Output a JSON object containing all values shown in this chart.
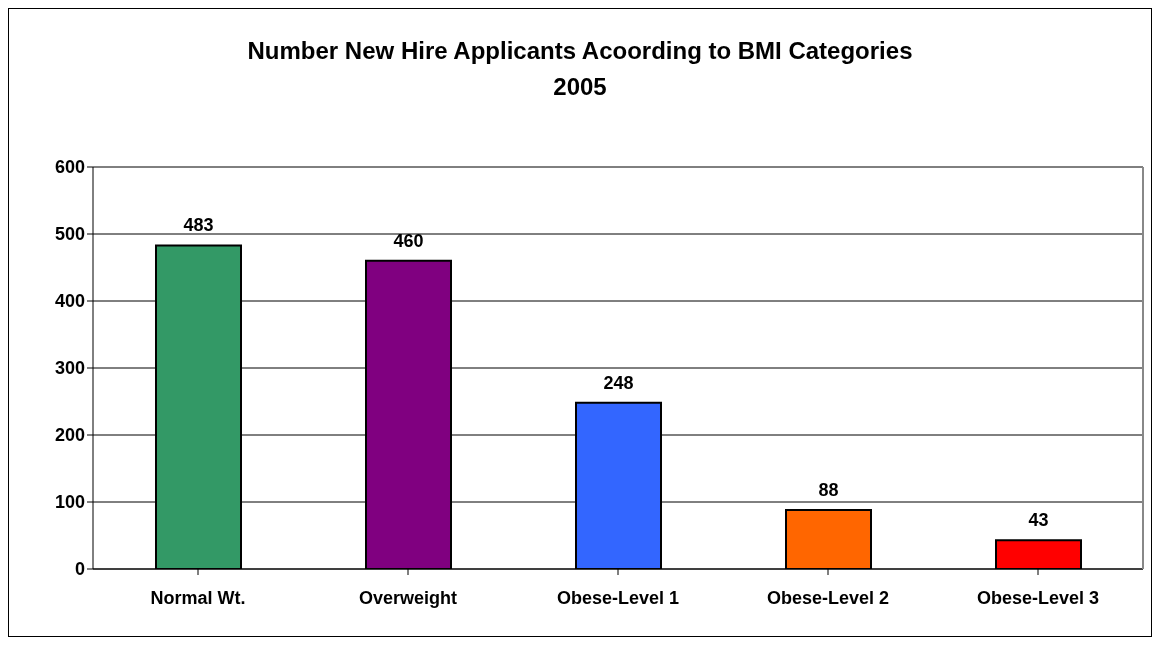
{
  "chart_data": {
    "type": "bar",
    "title": "Number New Hire Applicants Acoording to BMI Categories",
    "subtitle": "2005",
    "categories": [
      "Normal Wt.",
      "Overweight",
      "Obese-Level 1",
      "Obese-Level 2",
      "Obese-Level 3"
    ],
    "values": [
      483,
      460,
      248,
      88,
      43
    ],
    "colors": [
      "#339966",
      "#800080",
      "#3366ff",
      "#ff6600",
      "#ff0000"
    ],
    "ylim": [
      0,
      600
    ],
    "yticks": [
      0,
      100,
      200,
      300,
      400,
      500,
      600
    ],
    "grid": "y",
    "data_labels": true
  }
}
